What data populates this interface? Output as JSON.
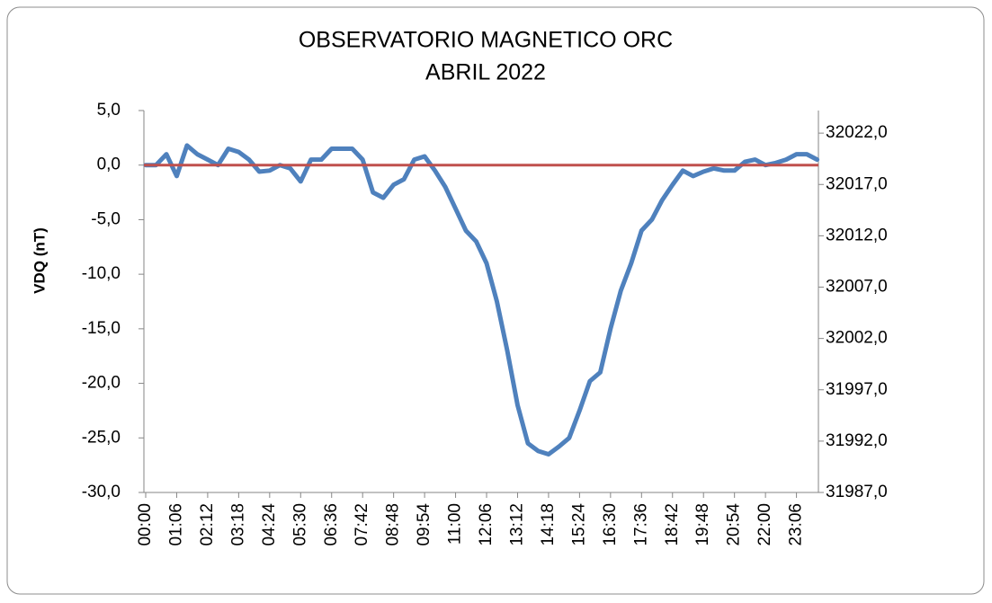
{
  "chart_data": {
    "type": "line",
    "title": "OBSERVATORIO MAGNETICO ORC",
    "subtitle": "ABRIL 2022",
    "y_label": "VDQ (nT)",
    "categories": [
      "00:00",
      null,
      null,
      "01:06",
      null,
      null,
      "02:12",
      null,
      null,
      "03:18",
      null,
      null,
      "04:24",
      null,
      null,
      "05:30",
      null,
      null,
      "06:36",
      null,
      null,
      "07:42",
      null,
      null,
      "08:48",
      null,
      null,
      "09:54",
      null,
      null,
      "11:00",
      null,
      null,
      "12:06",
      null,
      null,
      "13:12",
      null,
      null,
      "14:18",
      null,
      null,
      "15:24",
      null,
      null,
      "16:30",
      null,
      null,
      "17:36",
      null,
      null,
      "18:42",
      null,
      null,
      "19:48",
      null,
      null,
      "20:54",
      null,
      null,
      "22:00",
      null,
      null,
      "23:06",
      null,
      null
    ],
    "series": [
      {
        "color": "#4f81bd",
        "values": [
          0.0,
          0.0,
          1.0,
          -1.0,
          1.8,
          1.0,
          0.5,
          0.0,
          1.5,
          1.2,
          0.5,
          -0.6,
          -0.5,
          0.0,
          -0.3,
          -1.5,
          0.5,
          0.5,
          1.5,
          1.5,
          1.5,
          0.5,
          -2.5,
          -3.0,
          -1.8,
          -1.3,
          0.5,
          0.8,
          -0.5,
          -2.0,
          -4.0,
          -6.0,
          -7.0,
          -9.0,
          -12.5,
          -17.0,
          -22.0,
          -25.5,
          -26.2,
          -26.5,
          -25.8,
          -25.0,
          -22.5,
          -19.8,
          -19.0,
          -15.0,
          -11.5,
          -9.0,
          -6.0,
          -5.0,
          -3.2,
          -1.8,
          -0.5,
          -1.0,
          -0.6,
          -0.3,
          -0.5,
          -0.5,
          0.3,
          0.5,
          0.0,
          0.2,
          0.5,
          1.0,
          1.0,
          0.5
        ]
      }
    ],
    "reference_line": {
      "value": 0,
      "color": "#c0504d"
    },
    "ylim": [
      -30,
      5
    ],
    "yticks": [
      {
        "value": -30,
        "label": "-30,0"
      },
      {
        "value": -25,
        "label": "-25,0"
      },
      {
        "value": -20,
        "label": "-20,0"
      },
      {
        "value": -15,
        "label": "-15,0"
      },
      {
        "value": -10,
        "label": "-10,0"
      },
      {
        "value": -5,
        "label": "-5,0"
      },
      {
        "value": 0,
        "label": "0,0"
      },
      {
        "value": 5,
        "label": "5,0"
      }
    ],
    "y2lim": [
      31987,
      32024.2
    ],
    "y2ticks": [
      {
        "value": 31987,
        "label": "31987,0"
      },
      {
        "value": 31992,
        "label": "31992,0"
      },
      {
        "value": 31997,
        "label": "31997,0"
      },
      {
        "value": 32002,
        "label": "32002,0"
      },
      {
        "value": 32007,
        "label": "32007,0"
      },
      {
        "value": 32012,
        "label": "32012,0"
      },
      {
        "value": 32017,
        "label": "32017,0"
      },
      {
        "value": 32022,
        "label": "32022,0"
      }
    ],
    "grid": false
  }
}
